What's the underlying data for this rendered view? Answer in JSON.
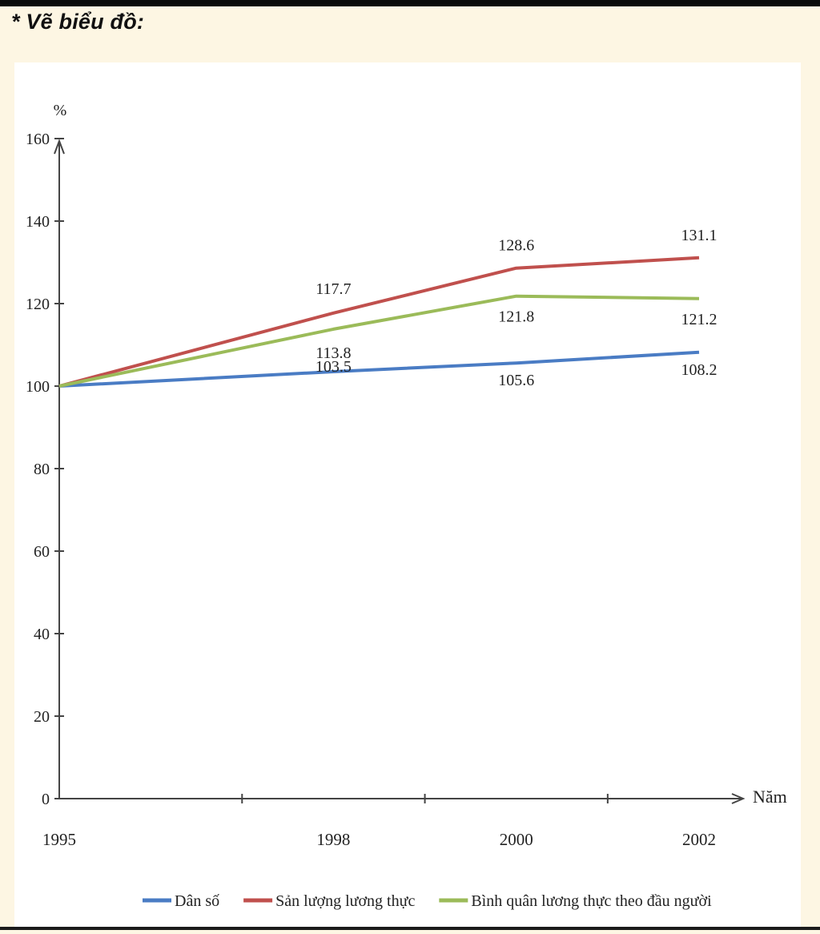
{
  "heading": "* Vẽ biểu đồ:",
  "chart_data": {
    "type": "line",
    "title": "",
    "xlabel": "Năm",
    "ylabel": "%",
    "x": [
      "1995",
      "1998",
      "2000",
      "2002"
    ],
    "ylim": [
      0,
      160
    ],
    "yticks": [
      0,
      20,
      40,
      60,
      80,
      100,
      120,
      140,
      160
    ],
    "grid": false,
    "legend_position": "bottom",
    "series": [
      {
        "name": "Dân số",
        "color": "#4a7cc4",
        "values": [
          100,
          103.5,
          105.6,
          108.2
        ],
        "labels": [
          "",
          "103.5",
          "105.6",
          "108.2"
        ]
      },
      {
        "name": "Sản lượng lương thực",
        "color": "#c0504d",
        "values": [
          100,
          117.7,
          128.6,
          131.1
        ],
        "labels": [
          "",
          "117.7",
          "128.6",
          "131.1"
        ]
      },
      {
        "name": "Bình quân lương thực theo đầu người",
        "color": "#9bbb59",
        "values": [
          100,
          113.8,
          121.8,
          121.2
        ],
        "labels": [
          "",
          "113.8",
          "121.8",
          "121.2"
        ]
      }
    ]
  }
}
